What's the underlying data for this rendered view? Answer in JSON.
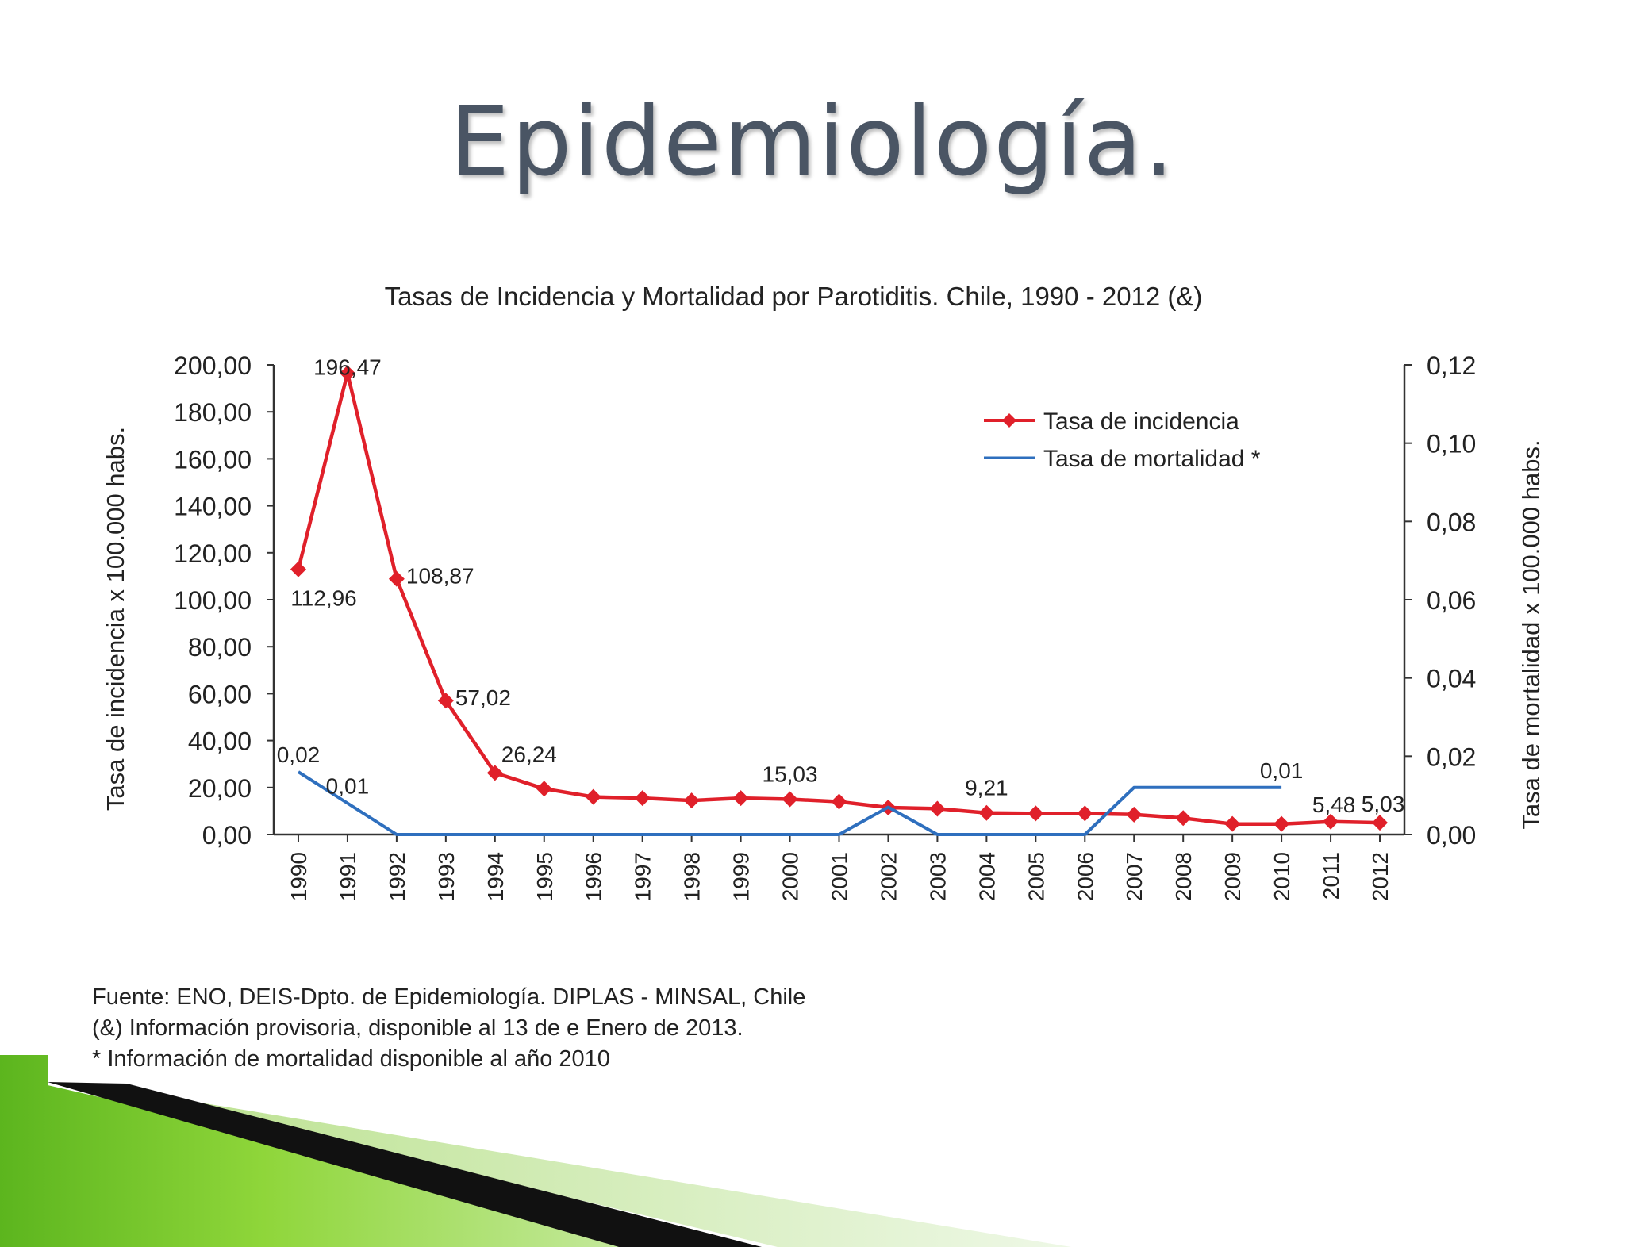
{
  "slide_title": "Epidemiología.",
  "chart_data": {
    "type": "line",
    "title": "Tasas de Incidencia y Mortalidad por Parotiditis. Chile, 1990 - 2012 (&)",
    "ylabel": "Tasa de incidencia x 100.000 habs.",
    "y2label": "Tasa de mortalidad x 100.000 habs.",
    "ylim": [
      0,
      200
    ],
    "y2lim": [
      0,
      0.12
    ],
    "yticks": [
      "0,00",
      "20,00",
      "40,00",
      "60,00",
      "80,00",
      "100,00",
      "120,00",
      "140,00",
      "160,00",
      "180,00",
      "200,00"
    ],
    "y2ticks": [
      "0,00",
      "0,02",
      "0,04",
      "0,06",
      "0,08",
      "0,10",
      "0,12"
    ],
    "categories": [
      "1990",
      "1991",
      "1992",
      "1993",
      "1994",
      "1995",
      "1996",
      "1997",
      "1998",
      "1999",
      "2000",
      "2001",
      "2002",
      "2003",
      "2004",
      "2005",
      "2006",
      "2007",
      "2008",
      "2009",
      "2010",
      "2011",
      "2012"
    ],
    "legend_position": "top-right",
    "series": [
      {
        "name": "Tasa de incidencia",
        "axis": "left",
        "color": "#e0202a",
        "marker": "diamond",
        "values": [
          112.96,
          196.47,
          108.87,
          57.02,
          26.24,
          19.5,
          16.0,
          15.5,
          14.5,
          15.5,
          15.03,
          14.0,
          11.5,
          11.0,
          9.21,
          9.0,
          9.0,
          8.5,
          7.0,
          4.5,
          4.5,
          5.48,
          5.03
        ],
        "labels": [
          {
            "index": 0,
            "text": "112,96",
            "pos": "below"
          },
          {
            "index": 1,
            "text": "196,47",
            "pos": "above"
          },
          {
            "index": 2,
            "text": "108,87",
            "pos": "right"
          },
          {
            "index": 3,
            "text": "57,02",
            "pos": "right"
          },
          {
            "index": 4,
            "text": "26,24",
            "pos": "above-right"
          },
          {
            "index": 10,
            "text": "15,03",
            "pos": "above"
          },
          {
            "index": 14,
            "text": "9,21",
            "pos": "above"
          },
          {
            "index": 21,
            "text": "5,48",
            "pos": "above"
          },
          {
            "index": 22,
            "text": "5,03",
            "pos": "above"
          }
        ]
      },
      {
        "name": "Tasa de mortalidad *",
        "axis": "right",
        "color": "#2e6fbe",
        "marker": "none",
        "values": [
          0.016,
          0.008,
          0,
          0,
          0,
          0,
          0,
          0,
          0,
          0,
          0,
          0,
          0.007,
          0,
          0,
          0,
          0,
          0.012,
          0.012,
          0.012,
          0.012,
          null,
          null
        ],
        "labels": [
          {
            "index": 0,
            "text": "0,02",
            "pos": "above"
          },
          {
            "index": 1,
            "text": "0,01",
            "pos": "above"
          },
          {
            "index": 20,
            "text": "0,01",
            "pos": "above"
          }
        ]
      }
    ]
  },
  "footnotes": [
    "Fuente: ENO, DEIS-Dpto. de Epidemiología. DIPLAS - MINSAL, Chile",
    "(&) Información provisoria, disponible al 13 de e Enero de 2013.",
    "* Información de mortalidad disponible al año 2010"
  ]
}
